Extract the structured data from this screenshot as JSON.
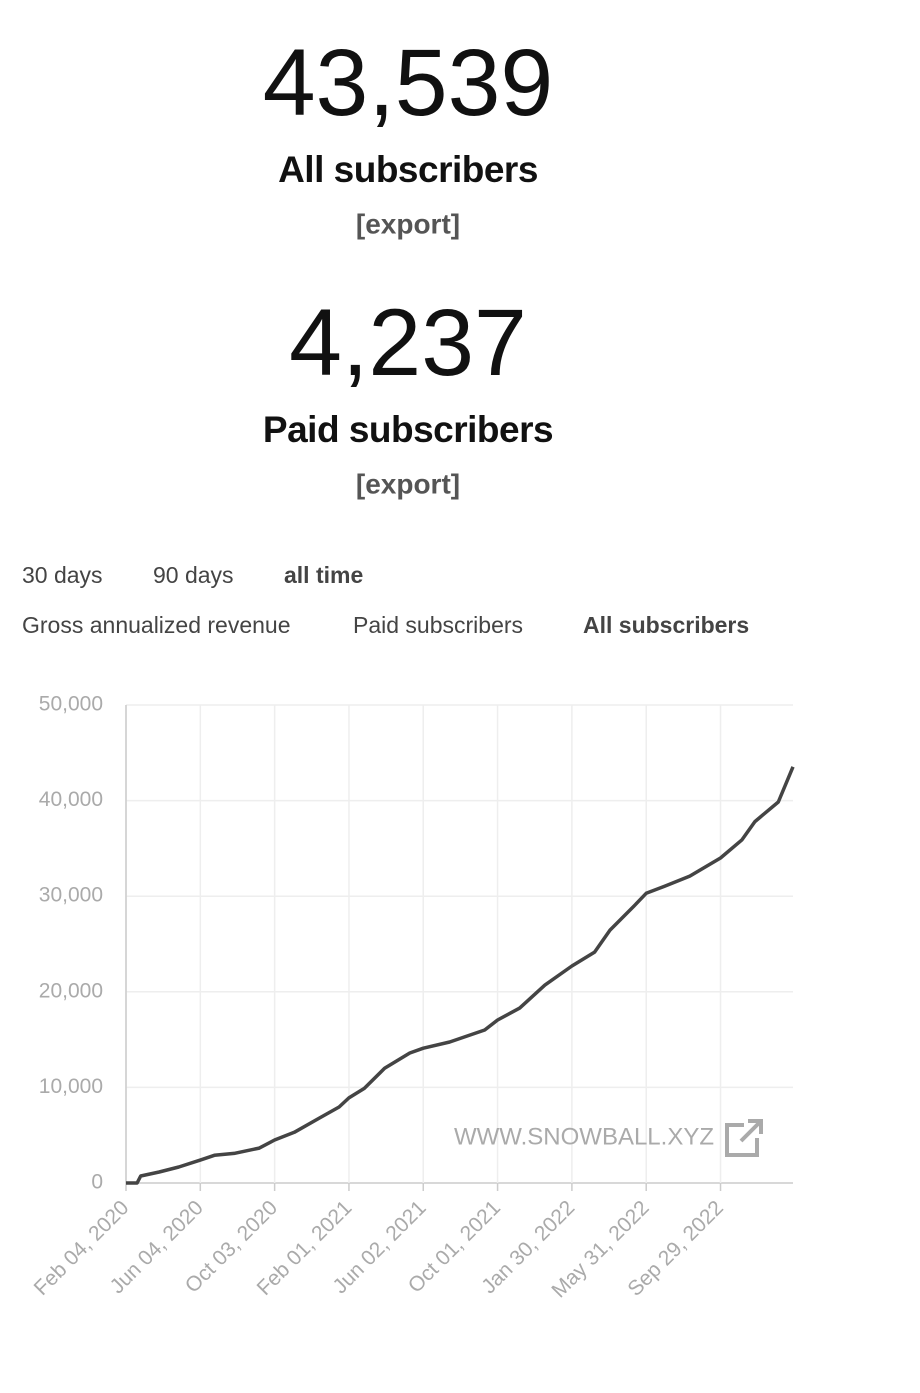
{
  "stats": [
    {
      "value": "43,539",
      "label": "All subscribers",
      "export": "[export]"
    },
    {
      "value": "4,237",
      "label": "Paid subscribers",
      "export": "[export]"
    }
  ],
  "ranges": [
    {
      "label": "30 days",
      "active": false
    },
    {
      "label": "90 days",
      "active": false
    },
    {
      "label": "all time",
      "active": true
    }
  ],
  "metrics": [
    {
      "label": "Gross annualized revenue",
      "active": false
    },
    {
      "label": "Paid subscribers",
      "active": false
    },
    {
      "label": "All subscribers",
      "active": true
    }
  ],
  "chart_data": {
    "type": "line",
    "watermark": "WWW.SNOWBALL.XYZ",
    "color": "#444444",
    "grid": true,
    "x": [
      "2020-02-04",
      "2020-02-22",
      "2020-02-28",
      "2020-03-29",
      "2020-04-30",
      "2020-06-04",
      "2020-06-27",
      "2020-07-29",
      "2020-09-08",
      "2020-10-03",
      "2020-11-04",
      "2020-12-15",
      "2021-01-16",
      "2021-02-01",
      "2021-02-26",
      "2021-03-31",
      "2021-05-11",
      "2021-06-02",
      "2021-07-15",
      "2021-09-10",
      "2021-10-01",
      "2021-11-06",
      "2021-12-17",
      "2022-01-30",
      "2022-03-08",
      "2022-04-02",
      "2022-05-13",
      "2022-05-31",
      "2022-06-30",
      "2022-08-10",
      "2022-09-29",
      "2022-11-03",
      "2022-11-24",
      "2023-01-01",
      "2023-01-25"
    ],
    "values": [
      0,
      0,
      730,
      1150,
      1670,
      2400,
      2900,
      3100,
      3650,
      4500,
      5300,
      6800,
      7950,
      8900,
      9900,
      12000,
      13600,
      14100,
      14750,
      16000,
      17050,
      18300,
      20700,
      22700,
      24150,
      26450,
      29100,
      30300,
      31050,
      32100,
      34000,
      35900,
      37800,
      39850,
      43539
    ],
    "xlim": [
      "2020-02-04",
      "2023-01-25"
    ],
    "xticks": [
      {
        "value": "2020-02-04",
        "label": "Feb 04, 2020"
      },
      {
        "value": "2020-06-04",
        "label": "Jun 04, 2020"
      },
      {
        "value": "2020-10-03",
        "label": "Oct 03, 2020"
      },
      {
        "value": "2021-02-01",
        "label": "Feb 01, 2021"
      },
      {
        "value": "2021-06-02",
        "label": "Jun 02, 2021"
      },
      {
        "value": "2021-10-01",
        "label": "Oct 01, 2021"
      },
      {
        "value": "2022-01-30",
        "label": "Jan 30, 2022"
      },
      {
        "value": "2022-05-31",
        "label": "May 31, 2022"
      },
      {
        "value": "2022-09-29",
        "label": "Sep 29, 2022"
      }
    ],
    "ylim": [
      0,
      50000
    ],
    "yticks": [
      0,
      {
        "value": 10000,
        "label": "10,000"
      },
      {
        "value": 20000,
        "label": "20,000"
      },
      {
        "value": 30000,
        "label": "30,000"
      },
      {
        "value": 40000,
        "label": "40,000"
      },
      {
        "value": 50000,
        "label": "50,000"
      }
    ]
  }
}
